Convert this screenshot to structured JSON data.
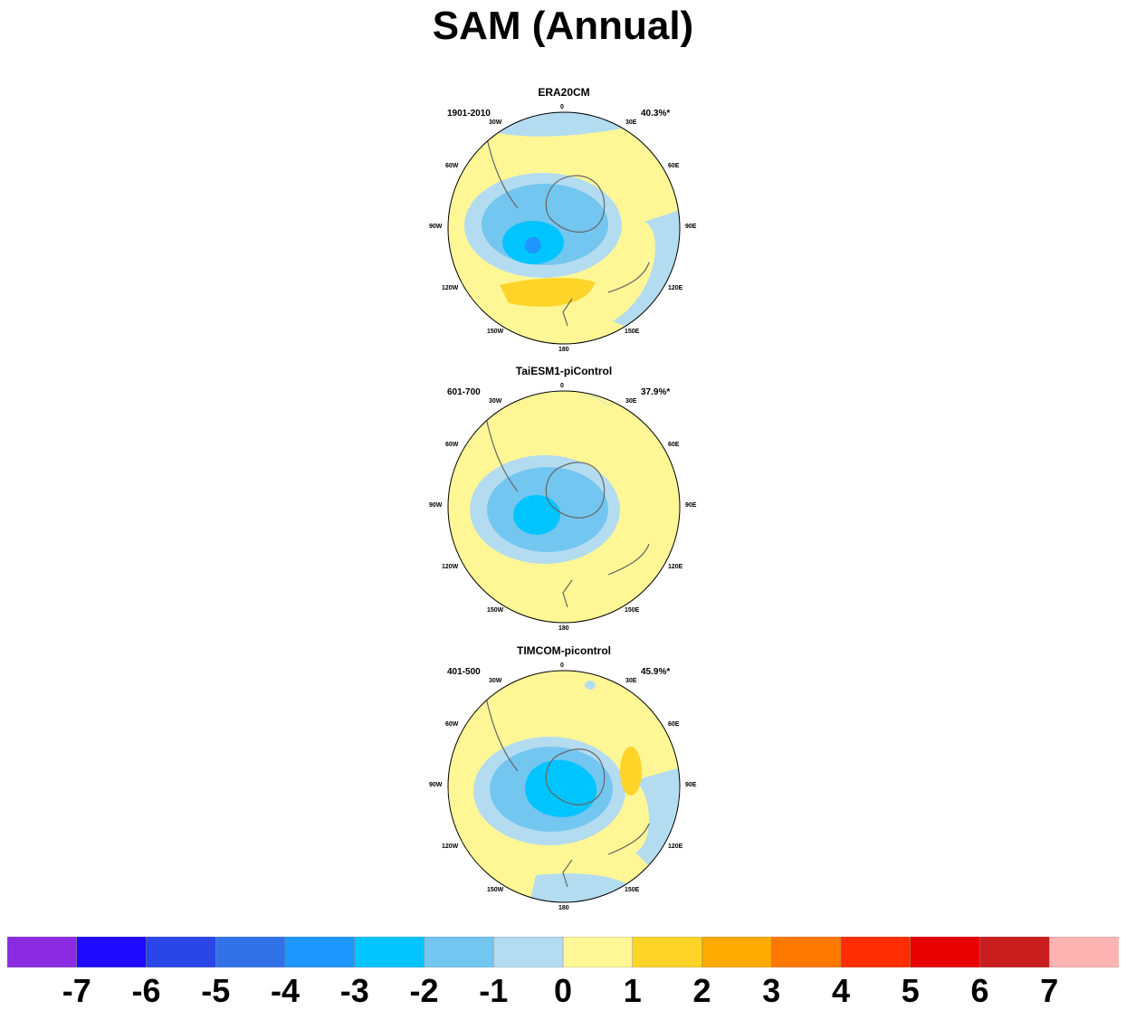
{
  "title": "SAM (Annual)",
  "panels": [
    {
      "title": "ERA20CM",
      "period": "1901-2010",
      "variance": "40.3%*"
    },
    {
      "title": "TaiESM1-piControl",
      "period": "601-700",
      "variance": "37.9%*"
    },
    {
      "title": "TIMCOM-picontrol",
      "period": "401-500",
      "variance": "45.9%*"
    }
  ],
  "map_labels": {
    "lon_0": "0",
    "lon_30e": "30E",
    "lon_60e": "60E",
    "lon_90e": "90E",
    "lon_120e": "120E",
    "lon_150e": "150E",
    "lon_180": "180",
    "lon_150w": "150W",
    "lon_120w": "120W",
    "lon_90w": "90W",
    "lon_60w": "60W",
    "lon_30w": "30W"
  },
  "colorbar": {
    "labels": [
      "-7",
      "-6",
      "-5",
      "-4",
      "-3",
      "-2",
      "-1",
      "0",
      "1",
      "2",
      "3",
      "4",
      "5",
      "6",
      "7"
    ],
    "colors": [
      "#8a2be2",
      "#1e0aff",
      "#2a46e8",
      "#3272e8",
      "#1e96ff",
      "#00c4ff",
      "#73c6f0",
      "#b4dcf0",
      "#fff796",
      "#ffd428",
      "#ffaa00",
      "#ff7800",
      "#ff2d00",
      "#e60000",
      "#c81e1e",
      "#ffb4b4"
    ]
  },
  "colors": {
    "land_outline": "#666666",
    "contour_0_1": "#fff796",
    "contour_m1_0": "#b4dcf0",
    "contour_m2_m1": "#73c6f0",
    "contour_m3_m2": "#00c4ff",
    "contour_m4_m3": "#1e96ff",
    "contour_1_2": "#ffd428"
  }
}
